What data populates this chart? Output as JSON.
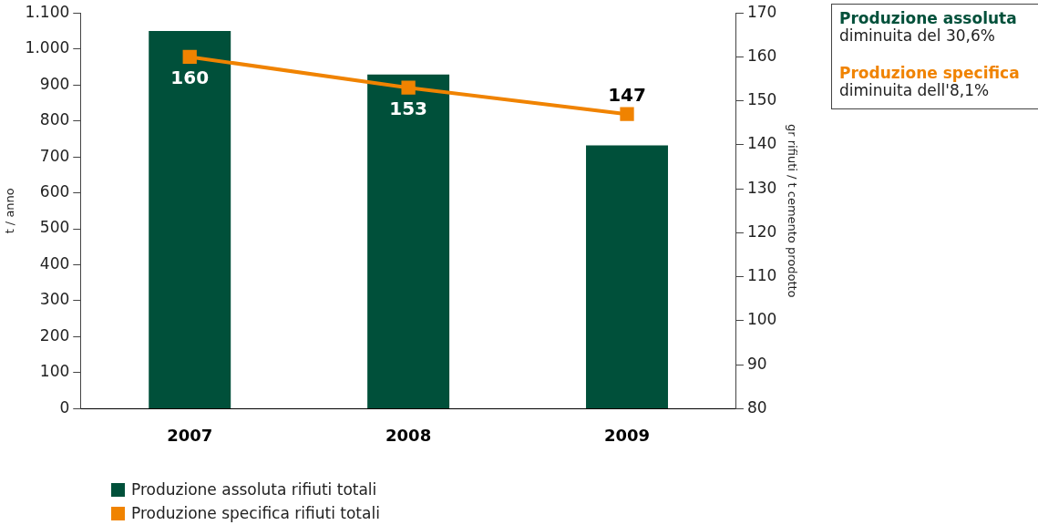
{
  "chart_data": {
    "type": "bar",
    "categories": [
      "2007",
      "2008",
      "2009"
    ],
    "series": [
      {
        "name": "Produzione assoluta rifiuti totali",
        "color": "#00503a",
        "values": [
          1050,
          929,
          732
        ]
      },
      {
        "name": "Produzione specifica rifiuti totali",
        "type": "line",
        "axis": "y2",
        "color": "#f08300",
        "values": [
          160,
          153,
          147
        ],
        "value_labels": [
          "160",
          "153",
          "147"
        ]
      }
    ],
    "ylabel": "t / anno",
    "y2label": "gr rifiuti / t cemento prodotto",
    "ylim": [
      0,
      1100
    ],
    "yticks": [
      0,
      {
        "value": 100,
        "label": "100"
      },
      {
        "value": 200,
        "label": "200"
      },
      {
        "value": 300,
        "label": "300"
      },
      {
        "value": 400,
        "label": "400"
      },
      {
        "value": 500,
        "label": "500"
      },
      {
        "value": 600,
        "label": "600"
      },
      {
        "value": 700,
        "label": "700"
      },
      {
        "value": 800,
        "label": "800"
      },
      {
        "value": 900,
        "label": "900"
      },
      {
        "value": 1000,
        "label": "1.000"
      },
      {
        "value": 1100,
        "label": "1.100"
      }
    ],
    "y2lim": [
      80,
      170
    ],
    "y2ticks": [
      80,
      90,
      100,
      110,
      120,
      130,
      140,
      150,
      160,
      170
    ],
    "marker": "square",
    "grid": false,
    "legend": "bottom left",
    "annotations": [
      "Produzione assoluta",
      "diminuita del 30,6%",
      "Produzione specifica",
      "diminuita dell'8,1%"
    ]
  }
}
